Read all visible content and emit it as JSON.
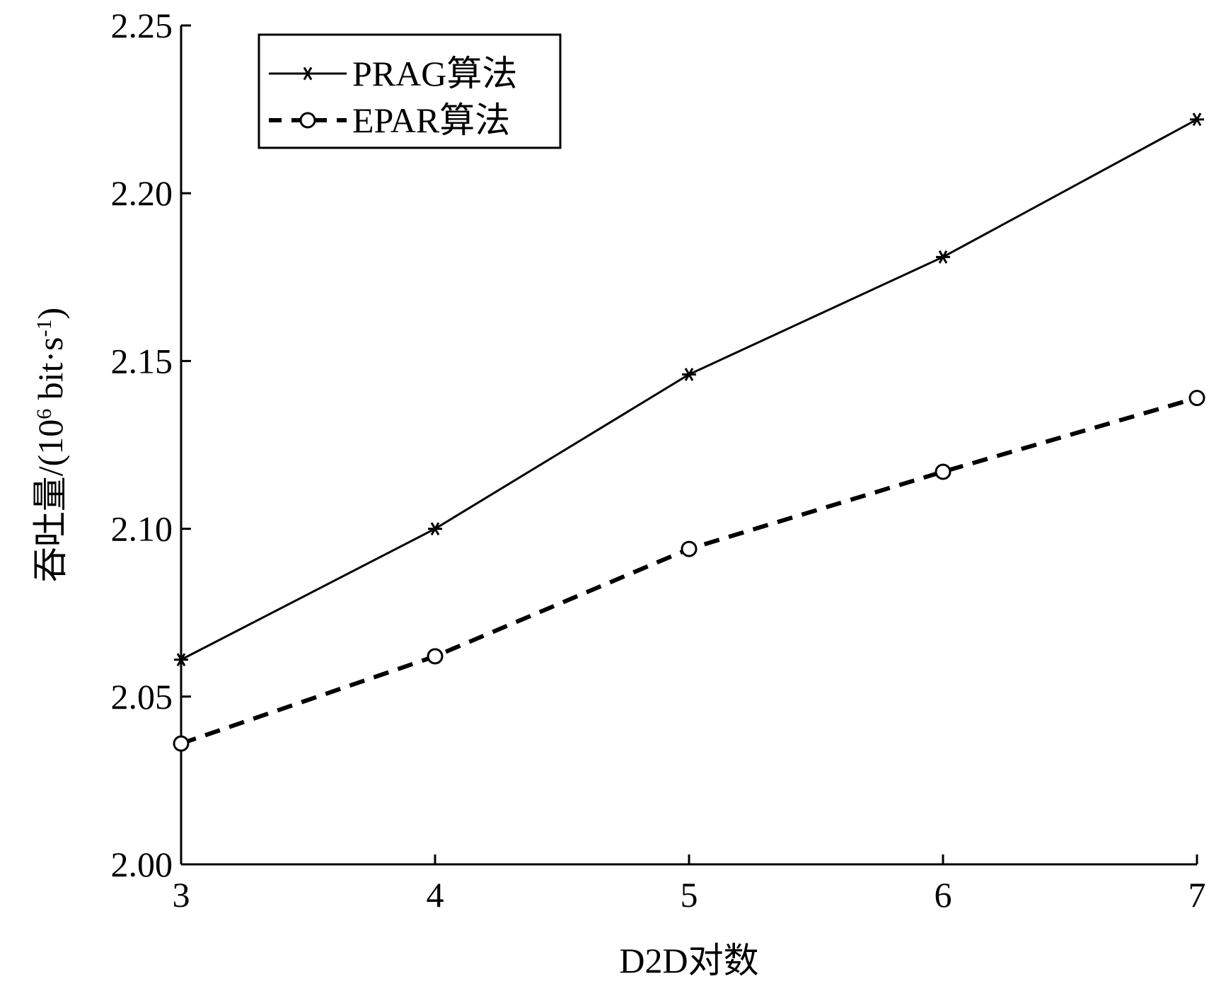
{
  "chart_data": {
    "type": "line",
    "xlabel": "D2D对数",
    "ylabel": [
      "吞吐量/(10",
      "6",
      " bit·s",
      "-1",
      ")"
    ],
    "x": [
      3,
      4,
      5,
      6,
      7
    ],
    "xlim": [
      3,
      7
    ],
    "xticks": [
      3,
      4,
      5,
      6,
      7
    ],
    "ylim": [
      2.0,
      2.25
    ],
    "yticks": [
      {
        "value": 2.0,
        "label": "2.00"
      },
      {
        "value": 2.05,
        "label": "2.05"
      },
      {
        "value": 2.1,
        "label": "2.10"
      },
      {
        "value": 2.15,
        "label": "2.15"
      },
      {
        "value": 2.2,
        "label": "2.20"
      },
      {
        "value": 2.25,
        "label": "2.25"
      }
    ],
    "legend": "upper left",
    "series": [
      {
        "name": "PRAG算法",
        "color": "#000000",
        "linestyle": "solid",
        "marker": "asterisk",
        "values": [
          2.061,
          2.1,
          2.146,
          2.181,
          2.222
        ]
      },
      {
        "name": "EPAR算法",
        "color": "#000000",
        "linestyle": "dashed",
        "marker": "circle",
        "values": [
          2.036,
          2.062,
          2.094,
          2.117,
          2.139
        ]
      }
    ]
  }
}
